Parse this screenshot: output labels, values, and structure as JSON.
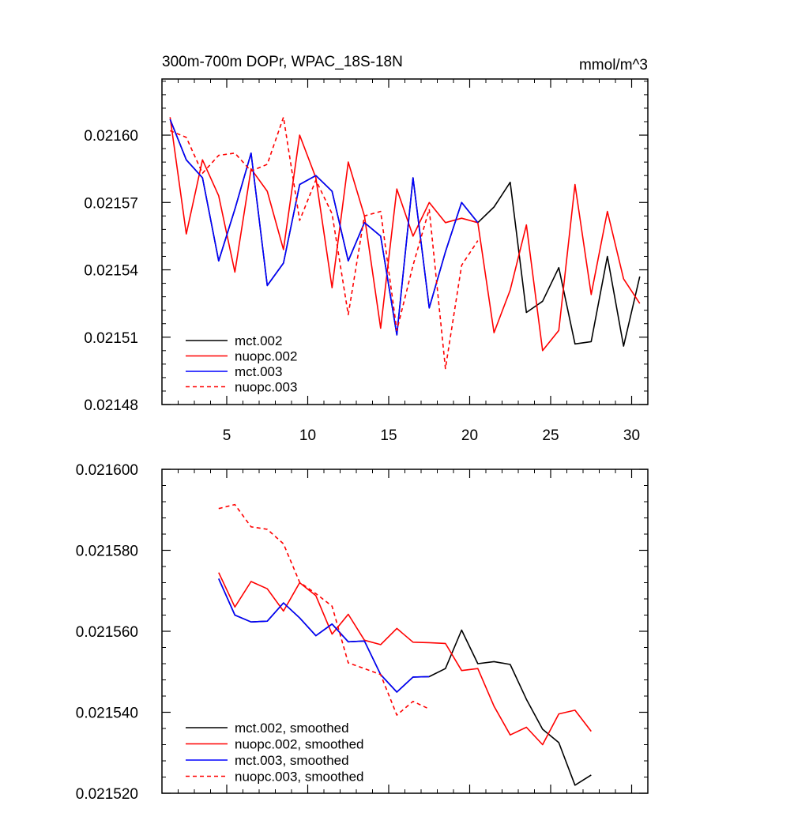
{
  "chart_data": [
    {
      "type": "line",
      "title": "300m-700m DOPr, WPAC_18S-18N",
      "units": "mmol/m^3",
      "xlim": [
        1,
        31
      ],
      "ylim": [
        0.02148,
        0.021625
      ],
      "xticks": [
        5,
        10,
        15,
        20,
        25,
        30
      ],
      "yticks": [
        0.02148,
        0.02151,
        0.02154,
        0.02157,
        0.0216
      ],
      "ytick_labels": [
        "0.02148",
        "0.02151",
        "0.02154",
        "0.02157",
        "0.02160"
      ],
      "legend_position": "bottom-left",
      "series": [
        {
          "name": "mct.002",
          "color": "#000000",
          "dash": "solid",
          "x": [
            1.5,
            2.5,
            3.5,
            4.5,
            5.5,
            6.5,
            7.5,
            8.5,
            9.5,
            10.5,
            11.5,
            12.5,
            13.5,
            14.5,
            15.5,
            16.5,
            17.5,
            18.5,
            19.5,
            20.5,
            21.5,
            22.5,
            23.5,
            24.5,
            25.5,
            26.5,
            27.5,
            28.5,
            29.5,
            30.5
          ],
          "y": [
            0.021607,
            0.021589,
            0.021581,
            0.021544,
            0.021567,
            0.021592,
            0.021533,
            0.021543,
            0.021578,
            0.021582,
            0.021575,
            0.021544,
            0.021561,
            0.021555,
            0.021511,
            0.021581,
            0.021523,
            0.021548,
            0.02157,
            0.021561,
            0.021568,
            0.021579,
            0.021521,
            0.021526,
            0.021541,
            0.021507,
            0.021508,
            0.021546,
            0.021506,
            0.021537
          ]
        },
        {
          "name": "nuopc.002",
          "color": "#ff0000",
          "dash": "solid",
          "x": [
            1.5,
            2.5,
            3.5,
            4.5,
            5.5,
            6.5,
            7.5,
            8.5,
            9.5,
            10.5,
            11.5,
            12.5,
            13.5,
            14.5,
            15.5,
            16.5,
            17.5,
            18.5,
            19.5,
            20.5,
            21.5,
            22.5,
            23.5,
            24.5,
            25.5,
            26.5,
            27.5,
            28.5,
            29.5,
            30.5
          ],
          "y": [
            0.021608,
            0.021556,
            0.021589,
            0.021573,
            0.021539,
            0.021585,
            0.021575,
            0.021549,
            0.0216,
            0.021581,
            0.021532,
            0.021588,
            0.021564,
            0.021514,
            0.021576,
            0.021555,
            0.02157,
            0.021561,
            0.021563,
            0.021561,
            0.021512,
            0.021531,
            0.02156,
            0.021504,
            0.021513,
            0.021578,
            0.021529,
            0.021566,
            0.021536,
            0.021525
          ]
        },
        {
          "name": "mct.003",
          "color": "#0000ff",
          "dash": "solid",
          "x": [
            1.5,
            2.5,
            3.5,
            4.5,
            5.5,
            6.5,
            7.5,
            8.5,
            9.5,
            10.5,
            11.5,
            12.5,
            13.5,
            14.5,
            15.5,
            16.5,
            17.5,
            18.5,
            19.5,
            20.5
          ],
          "y": [
            0.021607,
            0.021589,
            0.021581,
            0.021544,
            0.021567,
            0.021592,
            0.021533,
            0.021543,
            0.021578,
            0.021582,
            0.021575,
            0.021544,
            0.021561,
            0.021555,
            0.021511,
            0.021581,
            0.021523,
            0.021548,
            0.02157,
            0.021561
          ]
        },
        {
          "name": "nuopc.003",
          "color": "#ff0000",
          "dash": "dashed",
          "x": [
            1.5,
            2.5,
            3.5,
            4.5,
            5.5,
            6.5,
            7.5,
            8.5,
            9.5,
            10.5,
            11.5,
            12.5,
            13.5,
            14.5,
            15.5,
            16.5,
            17.5,
            18.5,
            19.5,
            20.5
          ],
          "y": [
            0.021602,
            0.021599,
            0.021583,
            0.021591,
            0.021592,
            0.021584,
            0.021587,
            0.021608,
            0.021562,
            0.02158,
            0.021565,
            0.02152,
            0.021564,
            0.021566,
            0.021513,
            0.021542,
            0.021567,
            0.021496,
            0.021542,
            0.021553
          ]
        }
      ]
    },
    {
      "type": "line",
      "title": "",
      "xlim": [
        1,
        31
      ],
      "ylim": [
        0.02152,
        0.0216
      ],
      "xticks": [
        5,
        10,
        15,
        20,
        25,
        30
      ],
      "yticks": [
        0.02152,
        0.02154,
        0.02156,
        0.02158,
        0.0216
      ],
      "ytick_labels": [
        "0.021520",
        "0.021540",
        "0.021560",
        "0.021580",
        "0.021600"
      ],
      "legend_position": "bottom-left",
      "series": [
        {
          "name": "mct.002, smoothed",
          "color": "#000000",
          "dash": "solid",
          "x": [
            4.5,
            5.5,
            6.5,
            7.5,
            8.5,
            9.5,
            10.5,
            11.5,
            12.5,
            13.5,
            14.5,
            15.5,
            16.5,
            17.5,
            18.5,
            19.5,
            20.5,
            21.5,
            22.5,
            23.5,
            24.5,
            25.5,
            26.5,
            27.5
          ],
          "y": [
            0.021573,
            0.021564,
            0.0215623,
            0.0215625,
            0.021567,
            0.0215633,
            0.0215589,
            0.0215618,
            0.0215574,
            0.0215576,
            0.0215493,
            0.021545,
            0.0215487,
            0.0215488,
            0.0215508,
            0.0215603,
            0.021552,
            0.0215525,
            0.0215518,
            0.0215432,
            0.0215358,
            0.0215325,
            0.021522,
            0.0215245
          ]
        },
        {
          "name": "nuopc.002, smoothed",
          "color": "#ff0000",
          "dash": "solid",
          "x": [
            4.5,
            5.5,
            6.5,
            7.5,
            8.5,
            9.5,
            10.5,
            11.5,
            12.5,
            13.5,
            14.5,
            15.5,
            16.5,
            17.5,
            18.5,
            19.5,
            20.5,
            21.5,
            22.5,
            23.5,
            24.5,
            25.5,
            26.5,
            27.5
          ],
          "y": [
            0.0215745,
            0.021566,
            0.0215723,
            0.0215705,
            0.021565,
            0.021572,
            0.0215688,
            0.0215593,
            0.0215642,
            0.0215578,
            0.0215567,
            0.0215607,
            0.0215573,
            0.0215572,
            0.021557,
            0.0215503,
            0.0215508,
            0.0215415,
            0.0215344,
            0.0215363,
            0.021532,
            0.0215396,
            0.0215405,
            0.0215353
          ]
        },
        {
          "name": "mct.003, smoothed",
          "color": "#0000ff",
          "dash": "solid",
          "x": [
            4.5,
            5.5,
            6.5,
            7.5,
            8.5,
            9.5,
            10.5,
            11.5,
            12.5,
            13.5,
            14.5,
            15.5,
            16.5,
            17.5
          ],
          "y": [
            0.021573,
            0.021564,
            0.0215623,
            0.0215625,
            0.021567,
            0.0215633,
            0.0215589,
            0.0215618,
            0.0215574,
            0.0215576,
            0.0215493,
            0.021545,
            0.0215487,
            0.0215488
          ]
        },
        {
          "name": "nuopc.003, smoothed",
          "color": "#ff0000",
          "dash": "dashed",
          "x": [
            4.5,
            5.5,
            6.5,
            7.5,
            8.5,
            9.5,
            10.5,
            11.5,
            12.5,
            13.5,
            14.5,
            15.5,
            16.5,
            17.5
          ],
          "y": [
            0.0215903,
            0.0215913,
            0.0215858,
            0.0215852,
            0.0215816,
            0.0215721,
            0.0215693,
            0.0215662,
            0.0215522,
            0.0215508,
            0.0215493,
            0.0215393,
            0.0215427,
            0.0215408
          ]
        }
      ]
    }
  ]
}
